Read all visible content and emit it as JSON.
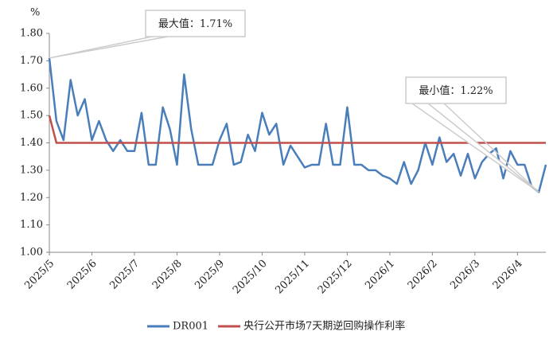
{
  "chart_data": {
    "type": "line",
    "y_unit": "%",
    "categories": [
      "2025/5",
      null,
      null,
      null,
      null,
      null,
      "2025/6",
      null,
      null,
      null,
      null,
      null,
      "2025/7",
      null,
      null,
      null,
      null,
      null,
      "2025/8",
      null,
      null,
      null,
      null,
      null,
      "2025/9",
      null,
      null,
      null,
      null,
      null,
      "2025/10",
      null,
      null,
      null,
      null,
      null,
      "2025/11",
      null,
      null,
      null,
      null,
      null,
      "2025/12",
      null,
      null,
      null,
      null,
      null,
      "2026/1",
      null,
      null,
      null,
      null,
      null,
      "2026/2",
      null,
      null,
      null,
      null,
      null,
      "2026/3",
      null,
      null,
      null,
      null,
      null,
      "2026/4",
      null,
      null,
      null,
      null
    ],
    "series": [
      {
        "name": "DR001",
        "color": "#4a7ebb",
        "values": [
          1.71,
          1.48,
          1.41,
          1.63,
          1.5,
          1.56,
          1.41,
          1.48,
          1.41,
          1.37,
          1.41,
          1.37,
          1.37,
          1.51,
          1.32,
          1.32,
          1.53,
          1.45,
          1.32,
          1.65,
          1.45,
          1.32,
          1.32,
          1.32,
          1.41,
          1.47,
          1.32,
          1.33,
          1.43,
          1.37,
          1.51,
          1.43,
          1.47,
          1.32,
          1.39,
          1.35,
          1.31,
          1.32,
          1.32,
          1.47,
          1.32,
          1.32,
          1.53,
          1.32,
          1.32,
          1.3,
          1.3,
          1.28,
          1.27,
          1.25,
          1.33,
          1.25,
          1.3,
          1.4,
          1.32,
          1.42,
          1.33,
          1.36,
          1.28,
          1.36,
          1.27,
          1.33,
          1.36,
          1.38,
          1.27,
          1.37,
          1.32,
          1.32,
          1.24,
          1.22,
          1.32
        ]
      },
      {
        "name": "央行公开市场7天期逆回购操作利率",
        "color": "#c0504d",
        "values": [
          1.5,
          1.4,
          1.4,
          1.4,
          1.4,
          1.4,
          1.4,
          1.4,
          1.4,
          1.4,
          1.4,
          1.4,
          1.4,
          1.4,
          1.4,
          1.4,
          1.4,
          1.4,
          1.4,
          1.4,
          1.4,
          1.4,
          1.4,
          1.4,
          1.4,
          1.4,
          1.4,
          1.4,
          1.4,
          1.4,
          1.4,
          1.4,
          1.4,
          1.4,
          1.4,
          1.4,
          1.4,
          1.4,
          1.4,
          1.4,
          1.4,
          1.4,
          1.4,
          1.4,
          1.4,
          1.4,
          1.4,
          1.4,
          1.4,
          1.4,
          1.4,
          1.4,
          1.4,
          1.4,
          1.4,
          1.4,
          1.4,
          1.4,
          1.4,
          1.4,
          1.4,
          1.4,
          1.4,
          1.4,
          1.4,
          1.4,
          1.4,
          1.4,
          1.4,
          1.4,
          1.4
        ]
      }
    ],
    "ylim": [
      1.0,
      1.8
    ],
    "yticks": [
      {
        "value": 1.0,
        "label": "1.00"
      },
      {
        "value": 1.1,
        "label": "1.10"
      },
      {
        "value": 1.2,
        "label": "1.20"
      },
      {
        "value": 1.3,
        "label": "1.30"
      },
      {
        "value": 1.4,
        "label": "1.40"
      },
      {
        "value": 1.5,
        "label": "1.50"
      },
      {
        "value": 1.6,
        "label": "1.60"
      },
      {
        "value": 1.7,
        "label": "1.70"
      },
      {
        "value": 1.8,
        "label": "1.80"
      }
    ],
    "annotations": [
      {
        "text": "最大值：1.71%"
      },
      {
        "text": "最小值：1.22%"
      }
    ],
    "legend": "bottom"
  }
}
